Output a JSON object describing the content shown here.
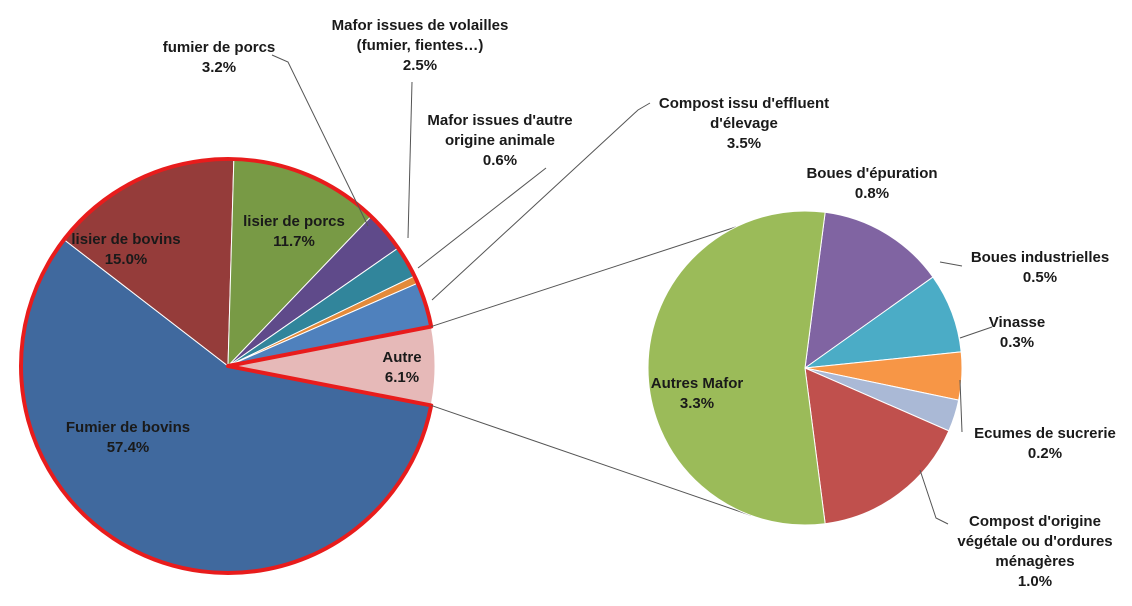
{
  "chart_data": [
    {
      "type": "pie",
      "categories": [
        "Fumier de bovins",
        "lisier de bovins",
        "lisier de porcs",
        "fumier de porcs",
        "Mafor issues de volailles\n(fumier, fientes…)",
        "Mafor issues d'autre\norigine animale",
        "Compost issu d'effluent\nd'élevage",
        "Autre"
      ],
      "values": [
        57.4,
        15.0,
        11.7,
        3.2,
        2.5,
        0.6,
        3.5,
        6.1
      ],
      "value_labels": [
        "57.4%",
        "15.0%",
        "11.7%",
        "3.2%",
        "2.5%",
        "0.6%",
        "3.5%",
        "6.1%"
      ],
      "colors": [
        "#40699e",
        "#953c3a",
        "#789a45",
        "#5f4a8a",
        "#31859b",
        "#e38a3a",
        "#4f81bd",
        "#e6b9b8"
      ]
    },
    {
      "type": "pie",
      "categories": [
        "Boues d'épuration",
        "Boues industrielles",
        "Vinasse",
        "Ecumes de sucrerie",
        "Compost d'origine\nvégétale ou d'ordures\nménagères",
        "Autres Mafor"
      ],
      "values": [
        0.8,
        0.5,
        0.3,
        0.2,
        1.0,
        3.3
      ],
      "value_labels": [
        "0.8%",
        "0.5%",
        "0.3%",
        "0.2%",
        "1.0%",
        "3.3%"
      ],
      "colors": [
        "#8064a2",
        "#4bacc6",
        "#f79646",
        "#aab9d6",
        "#c0504d",
        "#9bbb59"
      ]
    }
  ]
}
